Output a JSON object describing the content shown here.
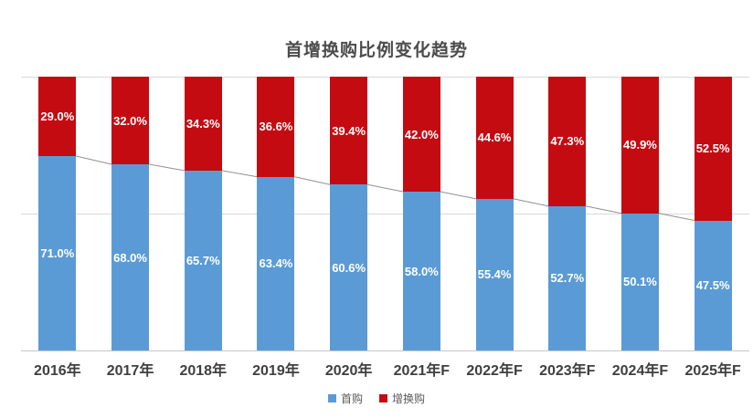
{
  "title": "首增换购比例变化趋势",
  "legend": {
    "items": [
      {
        "label": "首购",
        "color": "#5B9BD5"
      },
      {
        "label": "增换购",
        "color": "#C40B12"
      }
    ]
  },
  "chart_data": {
    "type": "bar",
    "variant": "stacked-100-percent-column",
    "title": "首增换购比例变化趋势",
    "categories": [
      "2016年",
      "2017年",
      "2018年",
      "2019年",
      "2020年",
      "2021年F",
      "2022年F",
      "2023年F",
      "2024年F",
      "2025年F"
    ],
    "series": [
      {
        "name": "首购",
        "color": "#5B9BD5",
        "position": "bottom",
        "values": [
          71.0,
          68.0,
          65.7,
          63.4,
          60.6,
          58.0,
          55.4,
          52.7,
          50.1,
          47.5
        ]
      },
      {
        "name": "增换购",
        "color": "#C40B12",
        "position": "top",
        "values": [
          29.0,
          32.0,
          34.3,
          36.6,
          39.4,
          42.0,
          44.6,
          47.3,
          49.9,
          52.5
        ]
      }
    ],
    "data_label_format": "0.0%",
    "data_label_color": "#FFFFFF",
    "ylim": [
      0,
      100
    ],
    "y_axis_labels_visible": false,
    "gridlines_at_percent": [
      50,
      100
    ],
    "series_lines": true,
    "legend_position": "bottom"
  },
  "colors": {
    "gridline": "#D9D9D9",
    "axis_line": "#C6C6C6",
    "series_line": "#919191",
    "title_text": "#4C4C4C",
    "axis_text": "#3F3F3F",
    "legend_text": "#595959"
  }
}
